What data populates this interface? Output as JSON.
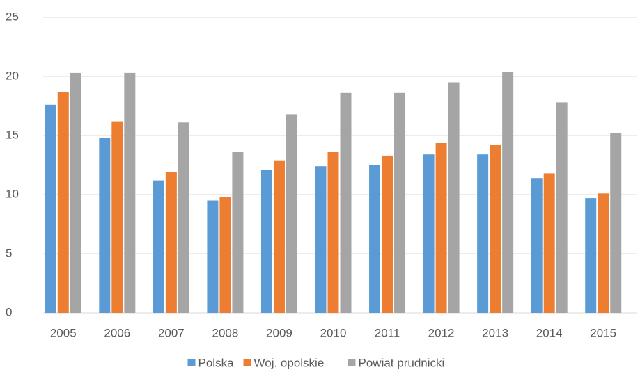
{
  "chart_data": {
    "type": "bar",
    "categories": [
      "2005",
      "2006",
      "2007",
      "2008",
      "2009",
      "2010",
      "2011",
      "2012",
      "2013",
      "2014",
      "2015"
    ],
    "series": [
      {
        "name": "Polska",
        "color": "#5b9bd5",
        "values": [
          17.6,
          14.8,
          11.2,
          9.5,
          12.1,
          12.4,
          12.5,
          13.4,
          13.4,
          11.4,
          9.7
        ]
      },
      {
        "name": "Woj. opolskie",
        "color": "#ed7d31",
        "values": [
          18.7,
          16.2,
          11.9,
          9.8,
          12.9,
          13.6,
          13.3,
          14.4,
          14.2,
          11.8,
          10.1
        ]
      },
      {
        "name": "Powiat prudnicki",
        "color": "#a5a5a5",
        "values": [
          20.3,
          20.3,
          16.1,
          13.6,
          16.8,
          18.6,
          18.6,
          19.5,
          20.4,
          17.8,
          15.2
        ]
      }
    ],
    "ylim": [
      0,
      25
    ],
    "yticks": [
      0,
      5,
      10,
      15,
      20,
      25
    ],
    "grid": true,
    "legend": "bottom"
  }
}
